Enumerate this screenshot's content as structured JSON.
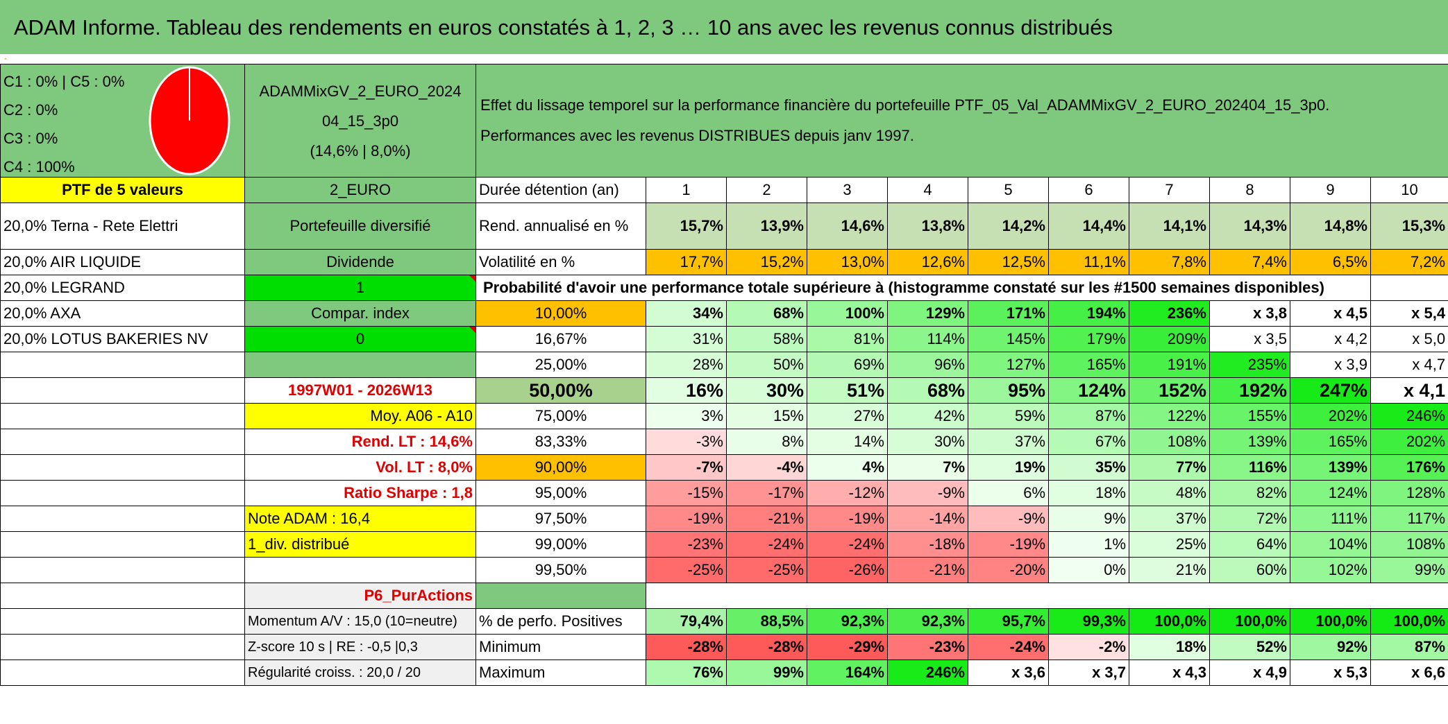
{
  "title": "ADAM Informe. Tableau des rendements en euros constatés à 1, 2, 3 … 10 ans avec les revenus connus distribués",
  "pie": {
    "legend": [
      "C1 : 0% | C5 : 0%",
      "C2 : 0%",
      "C3 : 0%",
      "C4 : 100%"
    ],
    "slices": [
      {
        "label": "C4",
        "value": 100,
        "color": "#ff0000"
      }
    ]
  },
  "fund": {
    "name_line1": "ADAMMixGV_2_EURO_2024",
    "name_line2": "04_15_3p0",
    "stats": "(14,6% | 8,0%)"
  },
  "description": {
    "line1": "Effet du lissage temporel sur la performance financière du portefeuille PTF_05_Val_ADAMMixGV_2_EURO_202404_15_3p0.",
    "line2": "Performances avec les revenus DISTRIBUES depuis janv 1997."
  },
  "left": {
    "ptf_header": "PTF de 5 valeurs",
    "holdings": [
      "20,0% Terna - Rete Elettri",
      "20,0% AIR LIQUIDE",
      "20,0% LEGRAND",
      "20,0% AXA",
      "20,0% LOTUS BAKERIES NV"
    ],
    "currency": "2_EURO",
    "portfolio_type": "Portefeuille diversifié",
    "dividend_label": "Dividende",
    "dividend_value": "1",
    "compar_label": "Compar. index",
    "compar_value": "0",
    "period": "1997W01 - 2026W13",
    "moy": "Moy. A06 - A10",
    "rend_lt": "Rend. LT : 14,6%",
    "vol_lt": "Vol. LT : 8,0%",
    "sharpe": "Ratio Sharpe : 1,8",
    "note": "Note ADAM : 16,4",
    "div_distrib": "1_div. distribué",
    "pur_actions": "P6_PurActions",
    "momentum": "Momentum A/V : 15,0 (10=neutre)",
    "zscore": "Z-score 10 s | RE : -0,5 |0,3",
    "regularite": "Régularité croiss. : 20,0 / 20"
  },
  "table": {
    "duration_label": "Durée détention (an)",
    "years": [
      "1",
      "2",
      "3",
      "4",
      "5",
      "6",
      "7",
      "8",
      "9",
      "10"
    ],
    "rend_label": "Rend. annualisé en %",
    "rend": [
      "15,7%",
      "13,9%",
      "14,6%",
      "13,8%",
      "14,2%",
      "14,4%",
      "14,1%",
      "14,3%",
      "14,8%",
      "15,3%"
    ],
    "vol_label": "Volatilité en %",
    "vol": [
      "17,7%",
      "15,2%",
      "13,0%",
      "12,6%",
      "12,5%",
      "11,1%",
      "7,8%",
      "7,4%",
      "6,5%",
      "7,2%"
    ],
    "prob_header": "Probabilité d'avoir une performance totale supérieure à (histogramme constaté sur les #1500 semaines disponibles)",
    "prob_rows": [
      {
        "p": "10,00%",
        "v": [
          "34%",
          "68%",
          "100%",
          "129%",
          "171%",
          "194%",
          "236%",
          "x 3,8",
          "x 4,5",
          "x 5,4"
        ]
      },
      {
        "p": "16,67%",
        "v": [
          "31%",
          "58%",
          "81%",
          "114%",
          "145%",
          "179%",
          "209%",
          "x 3,5",
          "x 4,2",
          "x 5,0"
        ]
      },
      {
        "p": "25,00%",
        "v": [
          "28%",
          "50%",
          "69%",
          "96%",
          "127%",
          "165%",
          "191%",
          "235%",
          "x 3,9",
          "x 4,7"
        ]
      },
      {
        "p": "50,00%",
        "v": [
          "16%",
          "30%",
          "51%",
          "68%",
          "95%",
          "124%",
          "152%",
          "192%",
          "247%",
          "x 4,1"
        ]
      },
      {
        "p": "75,00%",
        "v": [
          "3%",
          "15%",
          "27%",
          "42%",
          "59%",
          "87%",
          "122%",
          "155%",
          "202%",
          "246%"
        ]
      },
      {
        "p": "83,33%",
        "v": [
          "-3%",
          "8%",
          "14%",
          "30%",
          "37%",
          "67%",
          "108%",
          "139%",
          "165%",
          "202%"
        ]
      },
      {
        "p": "90,00%",
        "v": [
          "-7%",
          "-4%",
          "4%",
          "7%",
          "19%",
          "35%",
          "77%",
          "116%",
          "139%",
          "176%"
        ]
      },
      {
        "p": "95,00%",
        "v": [
          "-15%",
          "-17%",
          "-12%",
          "-9%",
          "6%",
          "18%",
          "48%",
          "82%",
          "124%",
          "128%"
        ]
      },
      {
        "p": "97,50%",
        "v": [
          "-19%",
          "-21%",
          "-19%",
          "-14%",
          "-9%",
          "9%",
          "37%",
          "72%",
          "111%",
          "117%"
        ]
      },
      {
        "p": "99,00%",
        "v": [
          "-23%",
          "-24%",
          "-24%",
          "-18%",
          "-19%",
          "1%",
          "25%",
          "64%",
          "104%",
          "108%"
        ]
      },
      {
        "p": "99,50%",
        "v": [
          "-25%",
          "-25%",
          "-26%",
          "-21%",
          "-20%",
          "0%",
          "21%",
          "60%",
          "102%",
          "99%"
        ]
      }
    ],
    "pos_label": "% de perfo. Positives",
    "pos": [
      "79,4%",
      "88,5%",
      "92,3%",
      "92,3%",
      "95,7%",
      "99,3%",
      "100,0%",
      "100,0%",
      "100,0%",
      "100,0%"
    ],
    "min_label": "Minimum",
    "min": [
      "-28%",
      "-28%",
      "-29%",
      "-23%",
      "-24%",
      "-2%",
      "18%",
      "52%",
      "92%",
      "87%"
    ],
    "max_label": "Maximum",
    "max": [
      "76%",
      "99%",
      "164%",
      "246%",
      "x 3,6",
      "x 3,7",
      "x 4,3",
      "x 4,9",
      "x 5,3",
      "x 6,6"
    ]
  }
}
